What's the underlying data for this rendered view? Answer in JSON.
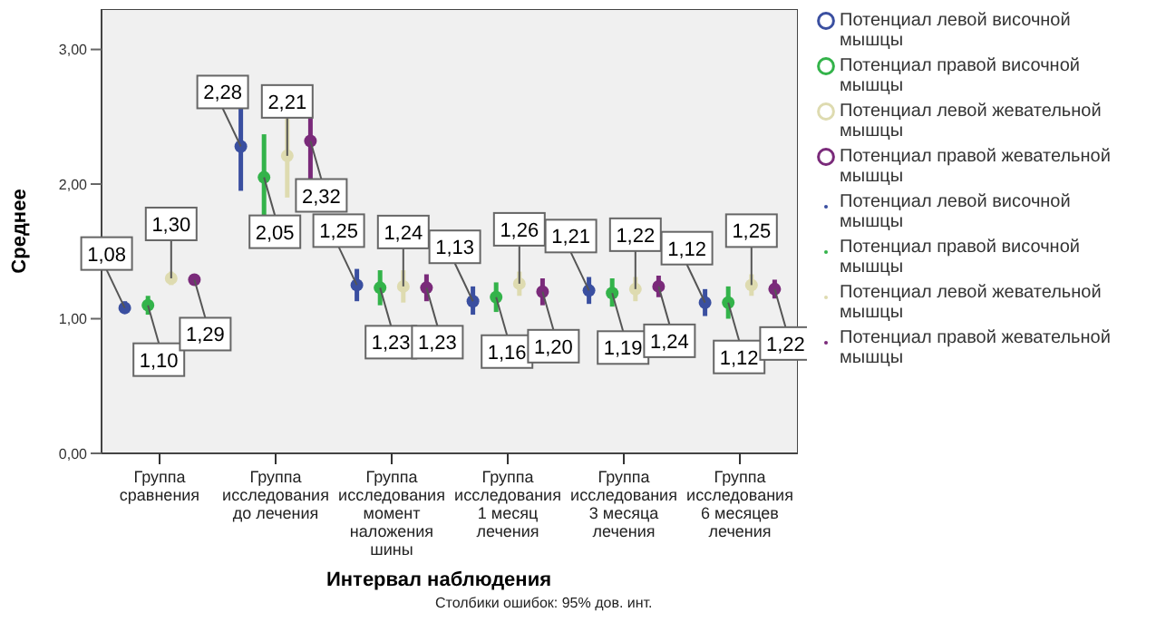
{
  "chart_data": {
    "type": "scatter",
    "xlabel": "Интервал наблюдения",
    "ylabel": "Среднее",
    "annotations": [
      "Столбики ошибок: 95% дов. инт."
    ],
    "categories": [
      "Группа сравнения",
      "Группа исследования до лечения",
      "Группа исследования момент наложения шины",
      "Группа исследования 1 месяц лечения",
      "Группа исследования 3 месяца лечения",
      "Группа исследования 6 месяцев лечения"
    ],
    "series": [
      {
        "name": "Потенциал левой височной мышцы",
        "color": "#3a4fa0",
        "values": [
          1.08,
          2.28,
          1.25,
          1.13,
          1.21,
          1.12
        ],
        "value_labels": [
          "1,08",
          "2,28",
          "1,25",
          "1,13",
          "1,21",
          "1,12"
        ],
        "errors": [
          [
            1.04,
            1.13
          ],
          [
            1.95,
            2.6
          ],
          [
            1.13,
            1.37
          ],
          [
            1.03,
            1.24
          ],
          [
            1.11,
            1.31
          ],
          [
            1.02,
            1.22
          ]
        ]
      },
      {
        "name": "Потенциал правой височной мышцы",
        "color": "#33b34a",
        "values": [
          1.1,
          2.05,
          1.23,
          1.16,
          1.19,
          1.12
        ],
        "value_labels": [
          "1,10",
          "2,05",
          "1,23",
          "1,16",
          "1,19",
          "1,12"
        ],
        "errors": [
          [
            1.03,
            1.17
          ],
          [
            1.72,
            2.37
          ],
          [
            1.1,
            1.36
          ],
          [
            1.05,
            1.27
          ],
          [
            1.09,
            1.3
          ],
          [
            1.0,
            1.24
          ]
        ]
      },
      {
        "name": "Потенциал левой жевательной мышцы",
        "color": "#dedbb0",
        "values": [
          1.3,
          2.21,
          1.24,
          1.26,
          1.22,
          1.25
        ],
        "value_labels": [
          "1,30",
          "2,21",
          "1,24",
          "1,26",
          "1,22",
          "1,25"
        ],
        "errors": [
          [
            1.25,
            1.35
          ],
          [
            1.9,
            2.5
          ],
          [
            1.12,
            1.36
          ],
          [
            1.17,
            1.35
          ],
          [
            1.13,
            1.31
          ],
          [
            1.17,
            1.33
          ]
        ]
      },
      {
        "name": "Потенциал правой жевательной мышцы",
        "color": "#7a2a7a",
        "values": [
          1.29,
          2.32,
          1.23,
          1.2,
          1.24,
          1.22
        ],
        "value_labels": [
          "1,29",
          "2,32",
          "1,23",
          "1,20",
          "1,24",
          "1,22"
        ],
        "errors": [
          [
            1.25,
            1.33
          ],
          [
            2.04,
            2.6
          ],
          [
            1.13,
            1.33
          ],
          [
            1.1,
            1.3
          ],
          [
            1.16,
            1.32
          ],
          [
            1.15,
            1.29
          ]
        ]
      }
    ],
    "ylim": [
      0,
      3.3
    ],
    "yticks": [
      {
        "value": 0,
        "label": "0,00"
      },
      {
        "value": 1,
        "label": "1,00"
      },
      {
        "value": 2,
        "label": "2,00"
      },
      {
        "value": 3,
        "label": "3,00"
      }
    ],
    "grid": false,
    "legend": "right",
    "marker": "circle"
  }
}
